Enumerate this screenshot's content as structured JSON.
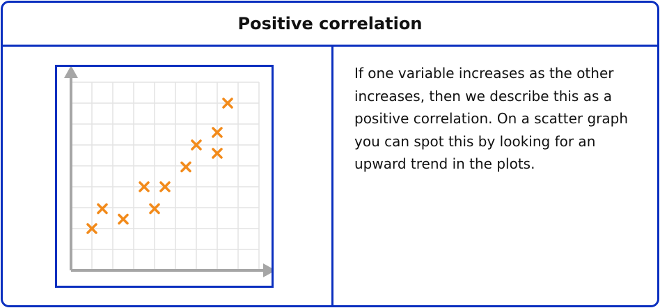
{
  "header": {
    "title": "Positive correlation"
  },
  "description": "If one variable increases as the other increases, then we describe this as a positive correlation. On a scatter graph you can spot this by looking for an upward trend in the plots.",
  "colors": {
    "frame": "#0b2fbf",
    "marker": "#f28a1a",
    "axis": "#a6a6a6",
    "grid": "#e3e3e3"
  },
  "chart_data": {
    "type": "scatter",
    "grid": true,
    "xlim": [
      0,
      9
    ],
    "ylim": [
      0,
      9
    ],
    "points": [
      {
        "x": 1.0,
        "y": 2.0
      },
      {
        "x": 1.5,
        "y": 2.95
      },
      {
        "x": 2.5,
        "y": 2.45
      },
      {
        "x": 3.5,
        "y": 4.0
      },
      {
        "x": 4.0,
        "y": 2.95
      },
      {
        "x": 4.5,
        "y": 4.0
      },
      {
        "x": 5.5,
        "y": 4.95
      },
      {
        "x": 6.0,
        "y": 6.0
      },
      {
        "x": 7.0,
        "y": 5.6
      },
      {
        "x": 7.0,
        "y": 6.6
      },
      {
        "x": 7.5,
        "y": 8.0
      }
    ]
  }
}
